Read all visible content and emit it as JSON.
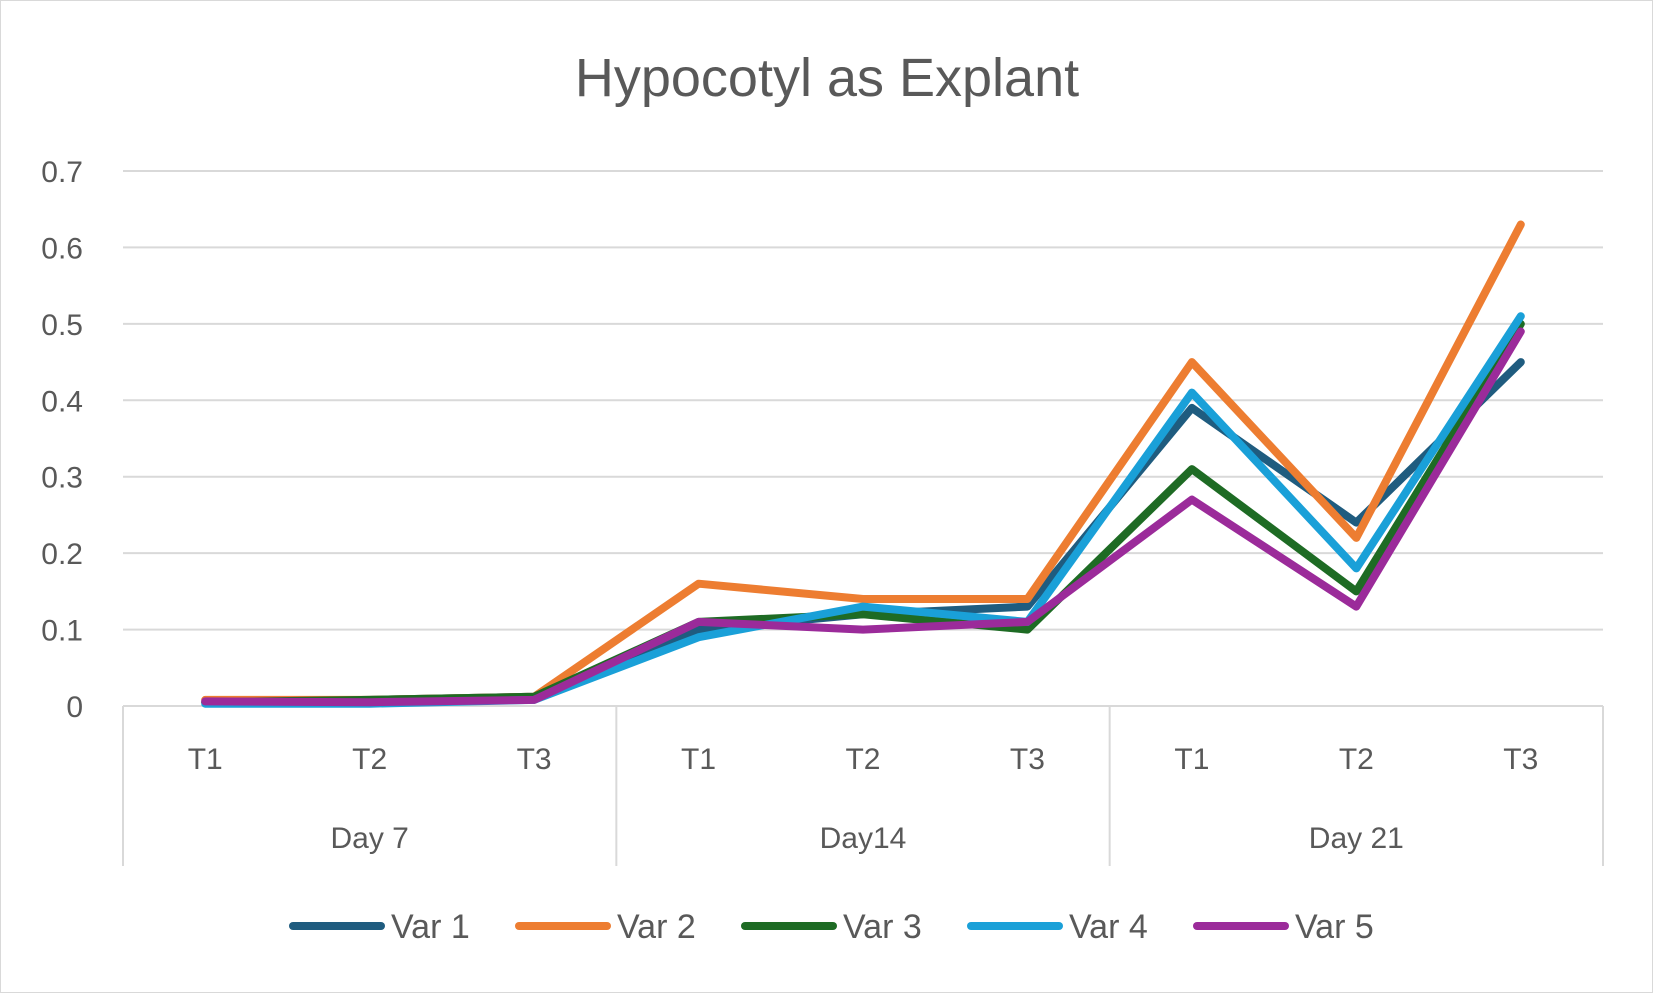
{
  "chart_data": {
    "type": "line",
    "title": "Hypocotyl as Explant",
    "xlabel": "",
    "ylabel": "",
    "ylim": [
      0,
      0.7
    ],
    "yticks": [
      "0",
      "0.1",
      "0.2",
      "0.3",
      "0.4",
      "0.5",
      "0.6",
      "0.7"
    ],
    "grid": true,
    "legend_position": "bottom",
    "groups": [
      {
        "label": "Day 7",
        "categories": [
          "T1",
          "T2",
          "T3"
        ]
      },
      {
        "label": "Day14",
        "categories": [
          "T1",
          "T2",
          "T3"
        ]
      },
      {
        "label": "Day 21",
        "categories": [
          "T1",
          "T2",
          "T3"
        ]
      }
    ],
    "series": [
      {
        "name": "Var 1",
        "color": "#1f5c7f",
        "values": [
          0.005,
          0.008,
          0.012,
          0.1,
          0.12,
          0.13,
          0.39,
          0.24,
          0.45
        ]
      },
      {
        "name": "Var 2",
        "color": "#ed7d31",
        "values": [
          0.008,
          0.008,
          0.012,
          0.16,
          0.14,
          0.14,
          0.45,
          0.22,
          0.63
        ]
      },
      {
        "name": "Var 3",
        "color": "#1e6b24",
        "values": [
          0.005,
          0.008,
          0.012,
          0.11,
          0.12,
          0.1,
          0.31,
          0.15,
          0.5
        ]
      },
      {
        "name": "Var 4",
        "color": "#1aa0d8",
        "values": [
          0.003,
          0.003,
          0.008,
          0.09,
          0.13,
          0.11,
          0.41,
          0.18,
          0.51
        ]
      },
      {
        "name": "Var 5",
        "color": "#9b2b9a",
        "values": [
          0.006,
          0.005,
          0.008,
          0.11,
          0.1,
          0.11,
          0.27,
          0.13,
          0.49
        ]
      }
    ]
  }
}
